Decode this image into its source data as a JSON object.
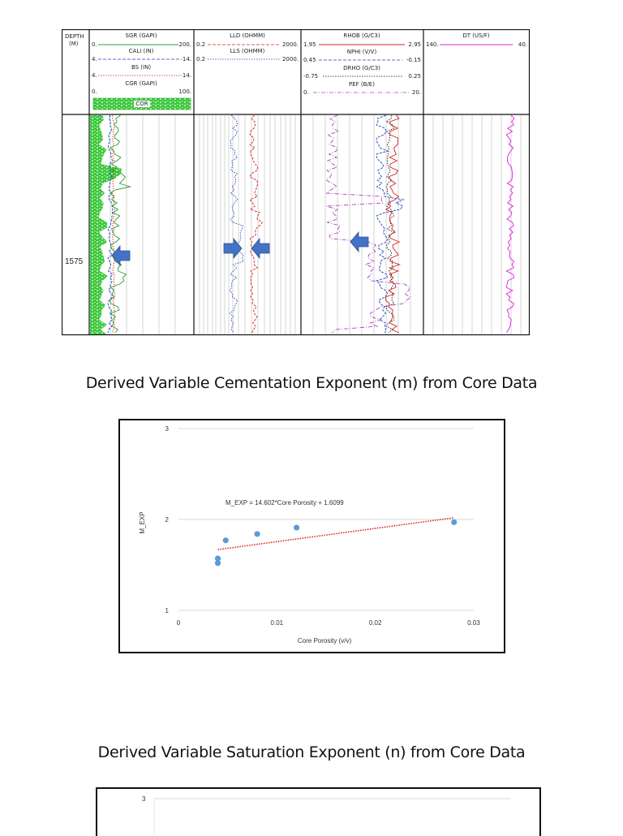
{
  "log_panel": {
    "depth_header": [
      "DEPTH",
      "(M)"
    ],
    "depth_marker": "1575",
    "tracks": [
      {
        "curves": [
          {
            "name": "SGR (GAPI)",
            "min": "0.",
            "max": "200.",
            "color": "#2aa02a",
            "style": "solid"
          },
          {
            "name": "CALI (IN)",
            "min": "4.",
            "max": "14.",
            "color": "#1a3fbf",
            "style": "dashed"
          },
          {
            "name": "BS (IN)",
            "min": "4.",
            "max": "14.",
            "color": "#d42020",
            "style": "dotted"
          },
          {
            "name": "CGR (GAPI)",
            "min": "0.",
            "max": "100.",
            "color": "#2aa02a",
            "style": "solid"
          }
        ],
        "fill_label": "COR"
      },
      {
        "curves": [
          {
            "name": "LLD (OHMM)",
            "min": "0.2",
            "max": "2000.",
            "color": "#d42020",
            "style": "dashed"
          },
          {
            "name": "LLS (OHMM)",
            "min": "0.2",
            "max": "2000.",
            "color": "#1a3fbf",
            "style": "dotted"
          }
        ]
      },
      {
        "curves": [
          {
            "name": "RHOB (G/C3)",
            "min": "1.95",
            "max": "2.95",
            "color": "#d42020",
            "style": "solid"
          },
          {
            "name": "NPHI (V/V)",
            "min": "0.45",
            "max": "-0.15",
            "color": "#1a3fbf",
            "style": "dashed"
          },
          {
            "name": "DRHO (G/C3)",
            "min": "-0.75",
            "max": "0.25",
            "color": "#111111",
            "style": "dotted"
          },
          {
            "name": "PEF (B/E)",
            "min": "0.",
            "max": "20.",
            "color": "#b040c0",
            "style": "dashdot"
          }
        ]
      },
      {
        "curves": [
          {
            "name": "DT (US/F)",
            "min": "140.",
            "max": "40.",
            "color": "#e020e0",
            "style": "solid"
          }
        ]
      }
    ]
  },
  "headings": {
    "cementation": "Derived Variable Cementation Exponent (m) from Core Data",
    "saturation": "Derived Variable Saturation Exponent (n) from Core Data"
  },
  "chart_data": [
    {
      "type": "scatter",
      "title": "",
      "xlabel": "Core Porosity (v/v)",
      "ylabel": "M_EXP",
      "xlim": [
        0,
        0.03
      ],
      "ylim": [
        1,
        3
      ],
      "x_ticks": [
        "0",
        "0.01",
        "0.02",
        "0.03"
      ],
      "y_ticks": [
        "1",
        "2",
        "3"
      ],
      "grid": "horizontal",
      "series": [
        {
          "points": [
            {
              "x": 0.004,
              "y": 1.52
            },
            {
              "x": 0.004,
              "y": 1.57
            },
            {
              "x": 0.0048,
              "y": 1.77
            },
            {
              "x": 0.008,
              "y": 1.84
            },
            {
              "x": 0.012,
              "y": 1.91
            },
            {
              "x": 0.028,
              "y": 1.97
            }
          ],
          "color": "#5b9bd5"
        }
      ],
      "trendline": {
        "equation": "M_EXP = 14.602*Core Porosity + 1.6099",
        "slope": 14.602,
        "intercept": 1.6099,
        "x_range": [
          0.004,
          0.028
        ],
        "color": "#e02020"
      }
    },
    {
      "type": "scatter",
      "title": "",
      "y_ticks": [
        "3"
      ]
    }
  ]
}
